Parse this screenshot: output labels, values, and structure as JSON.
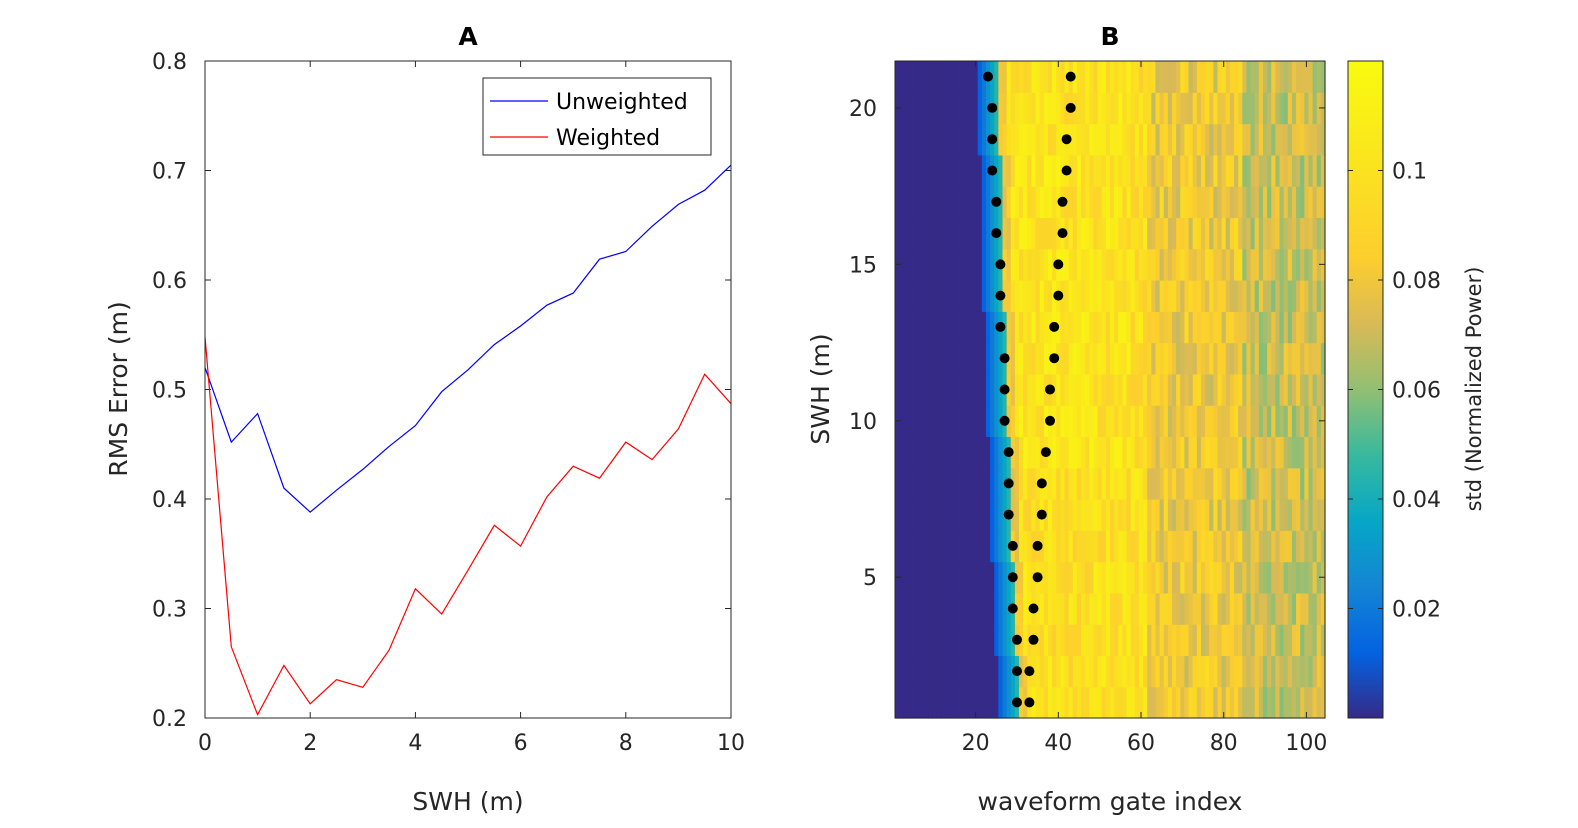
{
  "chart_data": [
    {
      "panel": "A",
      "type": "line",
      "title": "A",
      "xlabel": "SWH (m)",
      "ylabel": "RMS Error (m)",
      "xlim": [
        0,
        10
      ],
      "ylim": [
        0.2,
        0.8
      ],
      "xticks": [
        0,
        2,
        4,
        6,
        8,
        10
      ],
      "yticks": [
        0.2,
        0.3,
        0.4,
        0.5,
        0.6,
        0.7,
        0.8
      ],
      "xtick_labels": [
        "0",
        "2",
        "4",
        "6",
        "8",
        "10"
      ],
      "ytick_labels": [
        "0.2",
        "0.3",
        "0.4",
        "0.5",
        "0.6",
        "0.7",
        "0.8"
      ],
      "legend_position": "top-right",
      "x": [
        0,
        0.5,
        1,
        1.5,
        2,
        2.5,
        3,
        3.5,
        4,
        4.5,
        5,
        5.5,
        6,
        6.5,
        7,
        7.5,
        8,
        8.5,
        9,
        9.5,
        10
      ],
      "series": [
        {
          "name": "Unweighted",
          "color": "#0000ff",
          "values": [
            0.52,
            0.452,
            0.478,
            0.41,
            0.388,
            0.408,
            0.427,
            0.448,
            0.467,
            0.498,
            0.518,
            0.541,
            0.558,
            0.577,
            0.588,
            0.619,
            0.626,
            0.649,
            0.669,
            0.682,
            0.705
          ]
        },
        {
          "name": "Weighted",
          "color": "#ff0000",
          "values": [
            0.548,
            0.265,
            0.203,
            0.248,
            0.213,
            0.235,
            0.228,
            0.262,
            0.318,
            0.295,
            0.335,
            0.376,
            0.357,
            0.402,
            0.43,
            0.419,
            0.452,
            0.436,
            0.464,
            0.514,
            0.487
          ]
        }
      ]
    },
    {
      "panel": "B",
      "type": "heatmap",
      "title": "B",
      "xlabel": "waveform gate index",
      "ylabel": "SWH (m)",
      "xlim": [
        0.5,
        104.5
      ],
      "ylim": [
        0.5,
        21.5
      ],
      "xticks": [
        20,
        40,
        60,
        80,
        100
      ],
      "yticks": [
        5,
        10,
        15,
        20
      ],
      "xtick_labels": [
        "20",
        "40",
        "60",
        "80",
        "100"
      ],
      "ytick_labels": [
        "5",
        "10",
        "15",
        "20"
      ],
      "rows": 21,
      "columns": 104,
      "colormap": "parula",
      "clim": [
        0,
        0.12
      ],
      "noise_floor_end_gate": [
        31,
        31,
        30,
        30,
        30,
        29,
        29,
        29,
        29,
        28,
        28,
        28,
        28,
        27,
        27,
        27,
        27,
        27,
        26,
        26,
        26
      ],
      "colorbar": {
        "label": "std (Normalized Power)",
        "ticks": [
          0.02,
          0.04,
          0.06,
          0.08,
          0.1
        ],
        "tick_labels": [
          "0.02",
          "0.04",
          "0.06",
          "0.08",
          "0.1"
        ]
      },
      "markers_left": {
        "swh": [
          1,
          2,
          3,
          4,
          5,
          6,
          7,
          8,
          9,
          10,
          11,
          12,
          13,
          14,
          15,
          16,
          17,
          18,
          19,
          20,
          21
        ],
        "gate": [
          30,
          30,
          30,
          29,
          29,
          29,
          28,
          28,
          28,
          27,
          27,
          27,
          26,
          26,
          26,
          25,
          25,
          24,
          24,
          24,
          23
        ]
      },
      "markers_right": {
        "swh": [
          1,
          2,
          3,
          4,
          5,
          6,
          7,
          8,
          9,
          10,
          11,
          12,
          13,
          14,
          15,
          16,
          17,
          18,
          19,
          20,
          21
        ],
        "gate": [
          33,
          33,
          34,
          34,
          35,
          35,
          36,
          36,
          37,
          38,
          38,
          39,
          39,
          40,
          40,
          41,
          41,
          42,
          42,
          43,
          43
        ]
      }
    }
  ]
}
